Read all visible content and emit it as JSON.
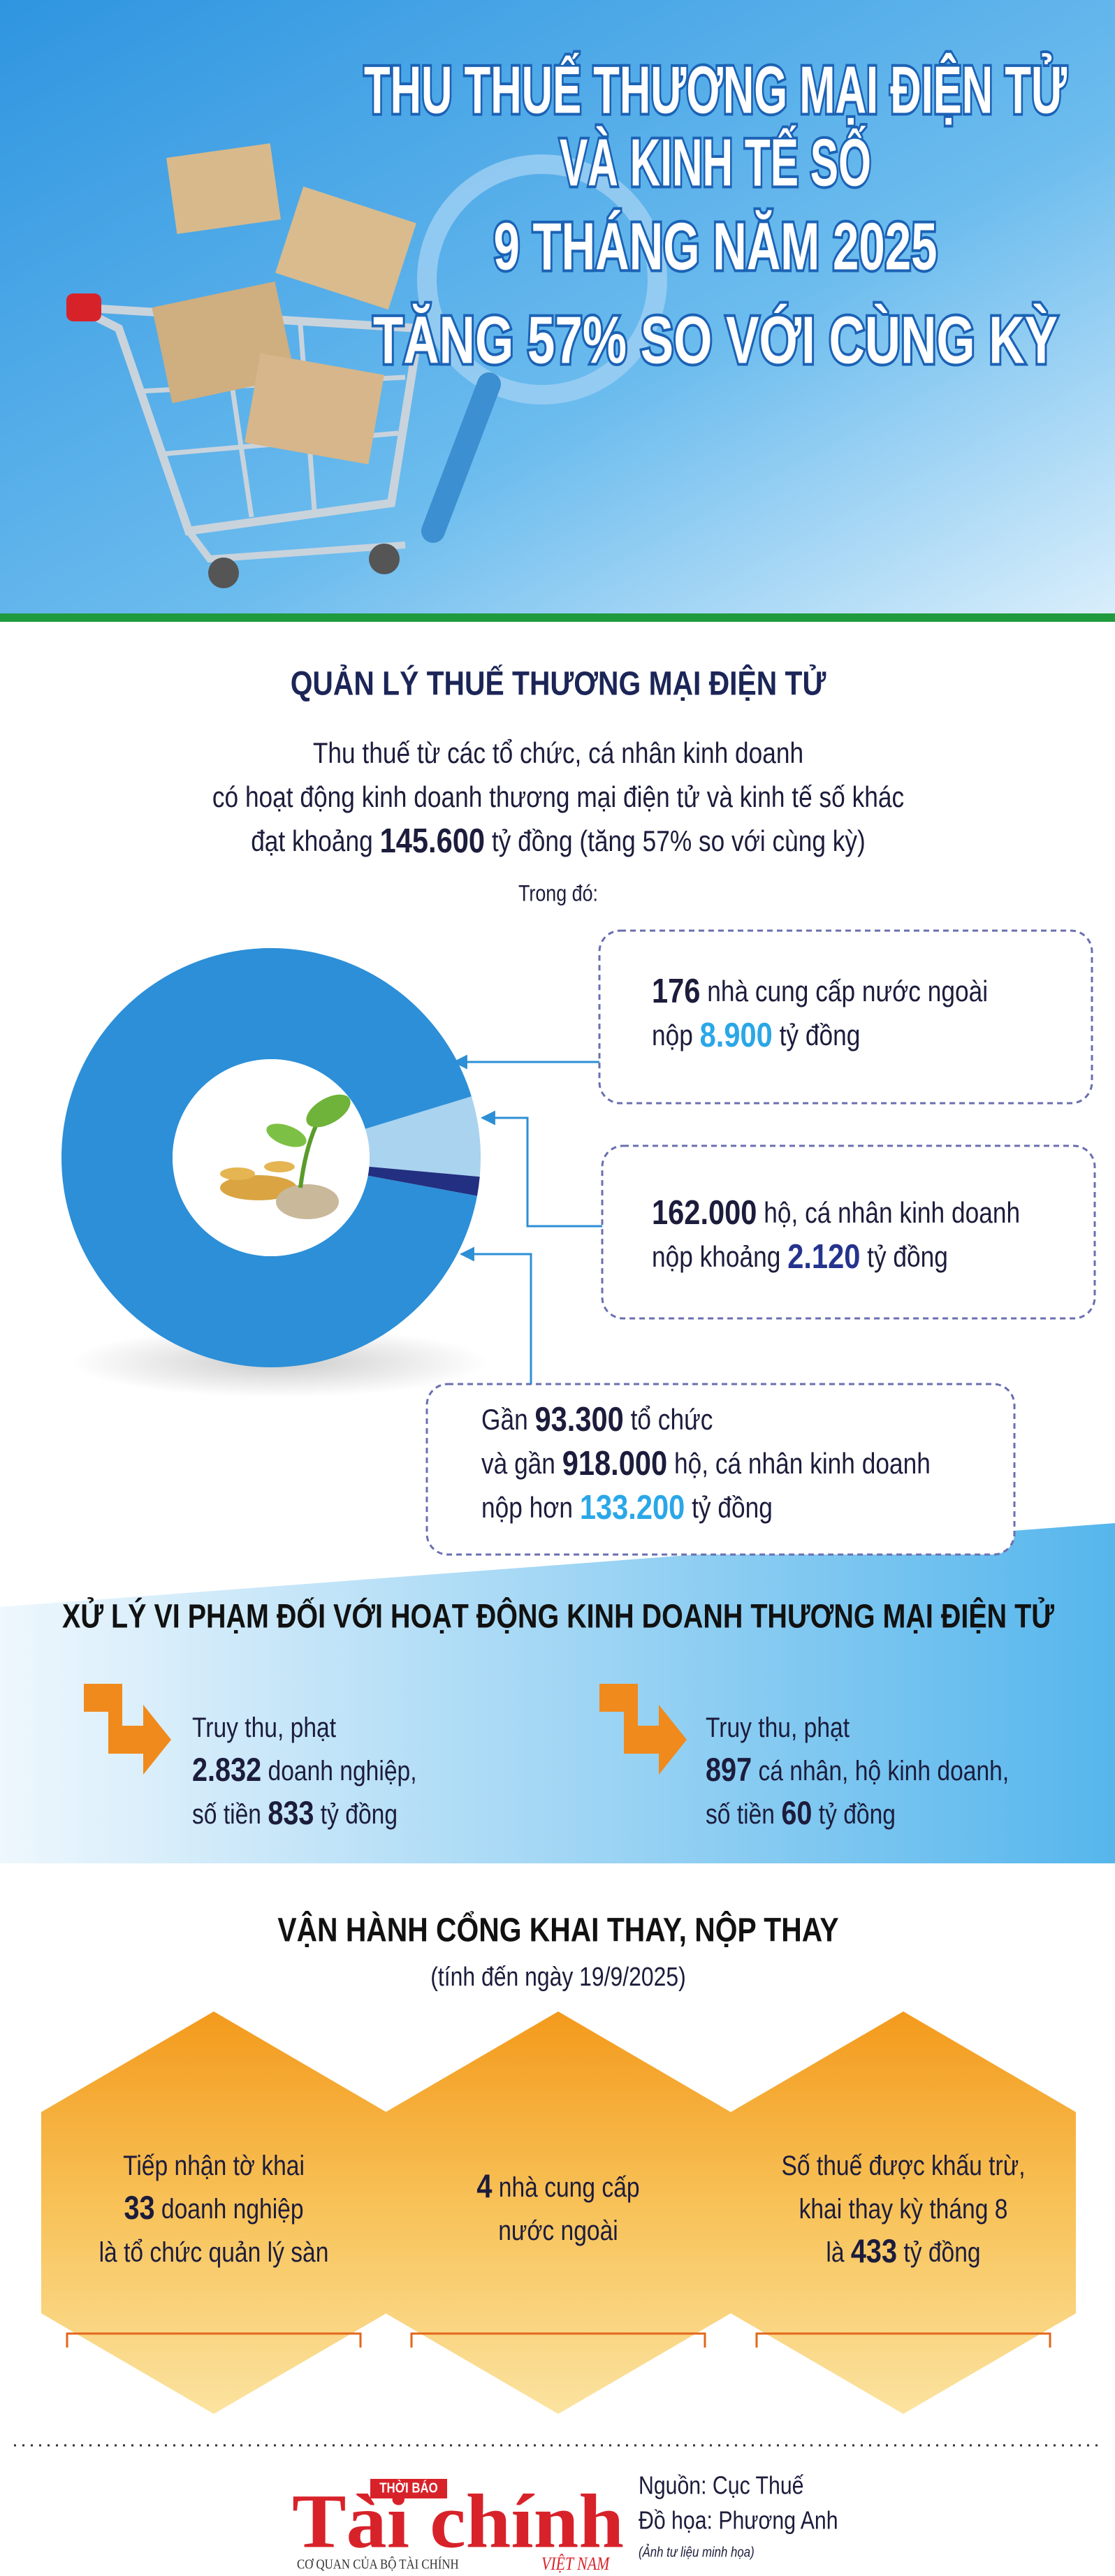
{
  "header": {
    "title": [
      "THU THUẾ THƯƠNG MẠI ĐIỆN TỬ",
      "VÀ KINH TẾ SỐ",
      "9 THÁNG NĂM 2025",
      "TĂNG 57% SO VỚI CÙNG KỲ"
    ]
  },
  "ecommerce_tax": {
    "title": "QUẢN LÝ THUẾ THƯƠNG MẠI ĐIỆN TỬ",
    "intro": [
      "Thu thuế từ các tổ chức, cá nhân kinh doanh",
      "có hoạt động kinh doanh thương mại điện tử và kinh tế số khác",
      [
        "đạt khoảng ",
        "145.600",
        " tỷ đồng (tăng 57% so với cùng kỳ)"
      ]
    ],
    "breakdown_label": "Trong đó:",
    "segments": [
      {
        "lines": [
          [
            "176",
            " nhà cung cấp nước ngoài"
          ],
          [
            "nộp ",
            "8.900",
            " tỷ đồng"
          ]
        ]
      },
      {
        "lines": [
          [
            "162.000",
            " hộ, cá nhân kinh doanh"
          ],
          [
            "nộp khoảng ",
            "2.120",
            " tỷ đồng"
          ]
        ]
      },
      {
        "lines": [
          [
            "Gần ",
            "93.300",
            " tổ chức"
          ],
          [
            "và gần ",
            "918.000",
            " hộ, cá nhân kinh doanh"
          ],
          [
            "nộp hơn ",
            "133.200",
            " tỷ đồng"
          ]
        ]
      }
    ]
  },
  "violations": {
    "title": "XỬ LÝ VI PHẠM ĐỐI VỚI HOẠT ĐỘNG KINH DOANH THƯƠNG MẠI ĐIỆN TỬ",
    "items": [
      {
        "lines": [
          [
            "Truy thu, phạt"
          ],
          [
            "2.832",
            " doanh nghiệp,"
          ],
          [
            "số tiền ",
            "833",
            " tỷ đồng"
          ]
        ]
      },
      {
        "lines": [
          [
            "Truy thu, phạt"
          ],
          [
            "897",
            " cá nhân, hộ kinh doanh,"
          ],
          [
            "số tiền ",
            "60",
            " tỷ đồng"
          ]
        ]
      }
    ]
  },
  "portal": {
    "title": "VẬN HÀNH CỔNG KHAI THAY, NỘP THAY",
    "subtitle": "(tính đến ngày 19/9/2025)",
    "items": [
      {
        "lines": [
          [
            "Tiếp nhận tờ khai"
          ],
          [
            "33",
            " doanh nghiệp"
          ],
          [
            "là tổ chức quản lý sàn"
          ]
        ]
      },
      {
        "lines": [
          [
            "4",
            " nhà cung cấp"
          ],
          [
            "nước ngoài"
          ]
        ]
      },
      {
        "lines": [
          [
            "Số thuế được khấu trừ,"
          ],
          [
            "khai thay kỳ tháng 8"
          ],
          [
            "là ",
            "433",
            " tỷ đồng"
          ]
        ]
      }
    ]
  },
  "footer": {
    "logo": {
      "top": "THỜI BÁO",
      "name": "Tài chính",
      "country": "VIỆT NAM",
      "tagline": "CƠ QUAN CỦA BỘ TÀI CHÍNH"
    },
    "source": "Nguồn: Cục Thuế",
    "design": "Đồ họa: Phương Anh",
    "photo_note": "(Ảnh tư liệu minh họa)"
  }
}
